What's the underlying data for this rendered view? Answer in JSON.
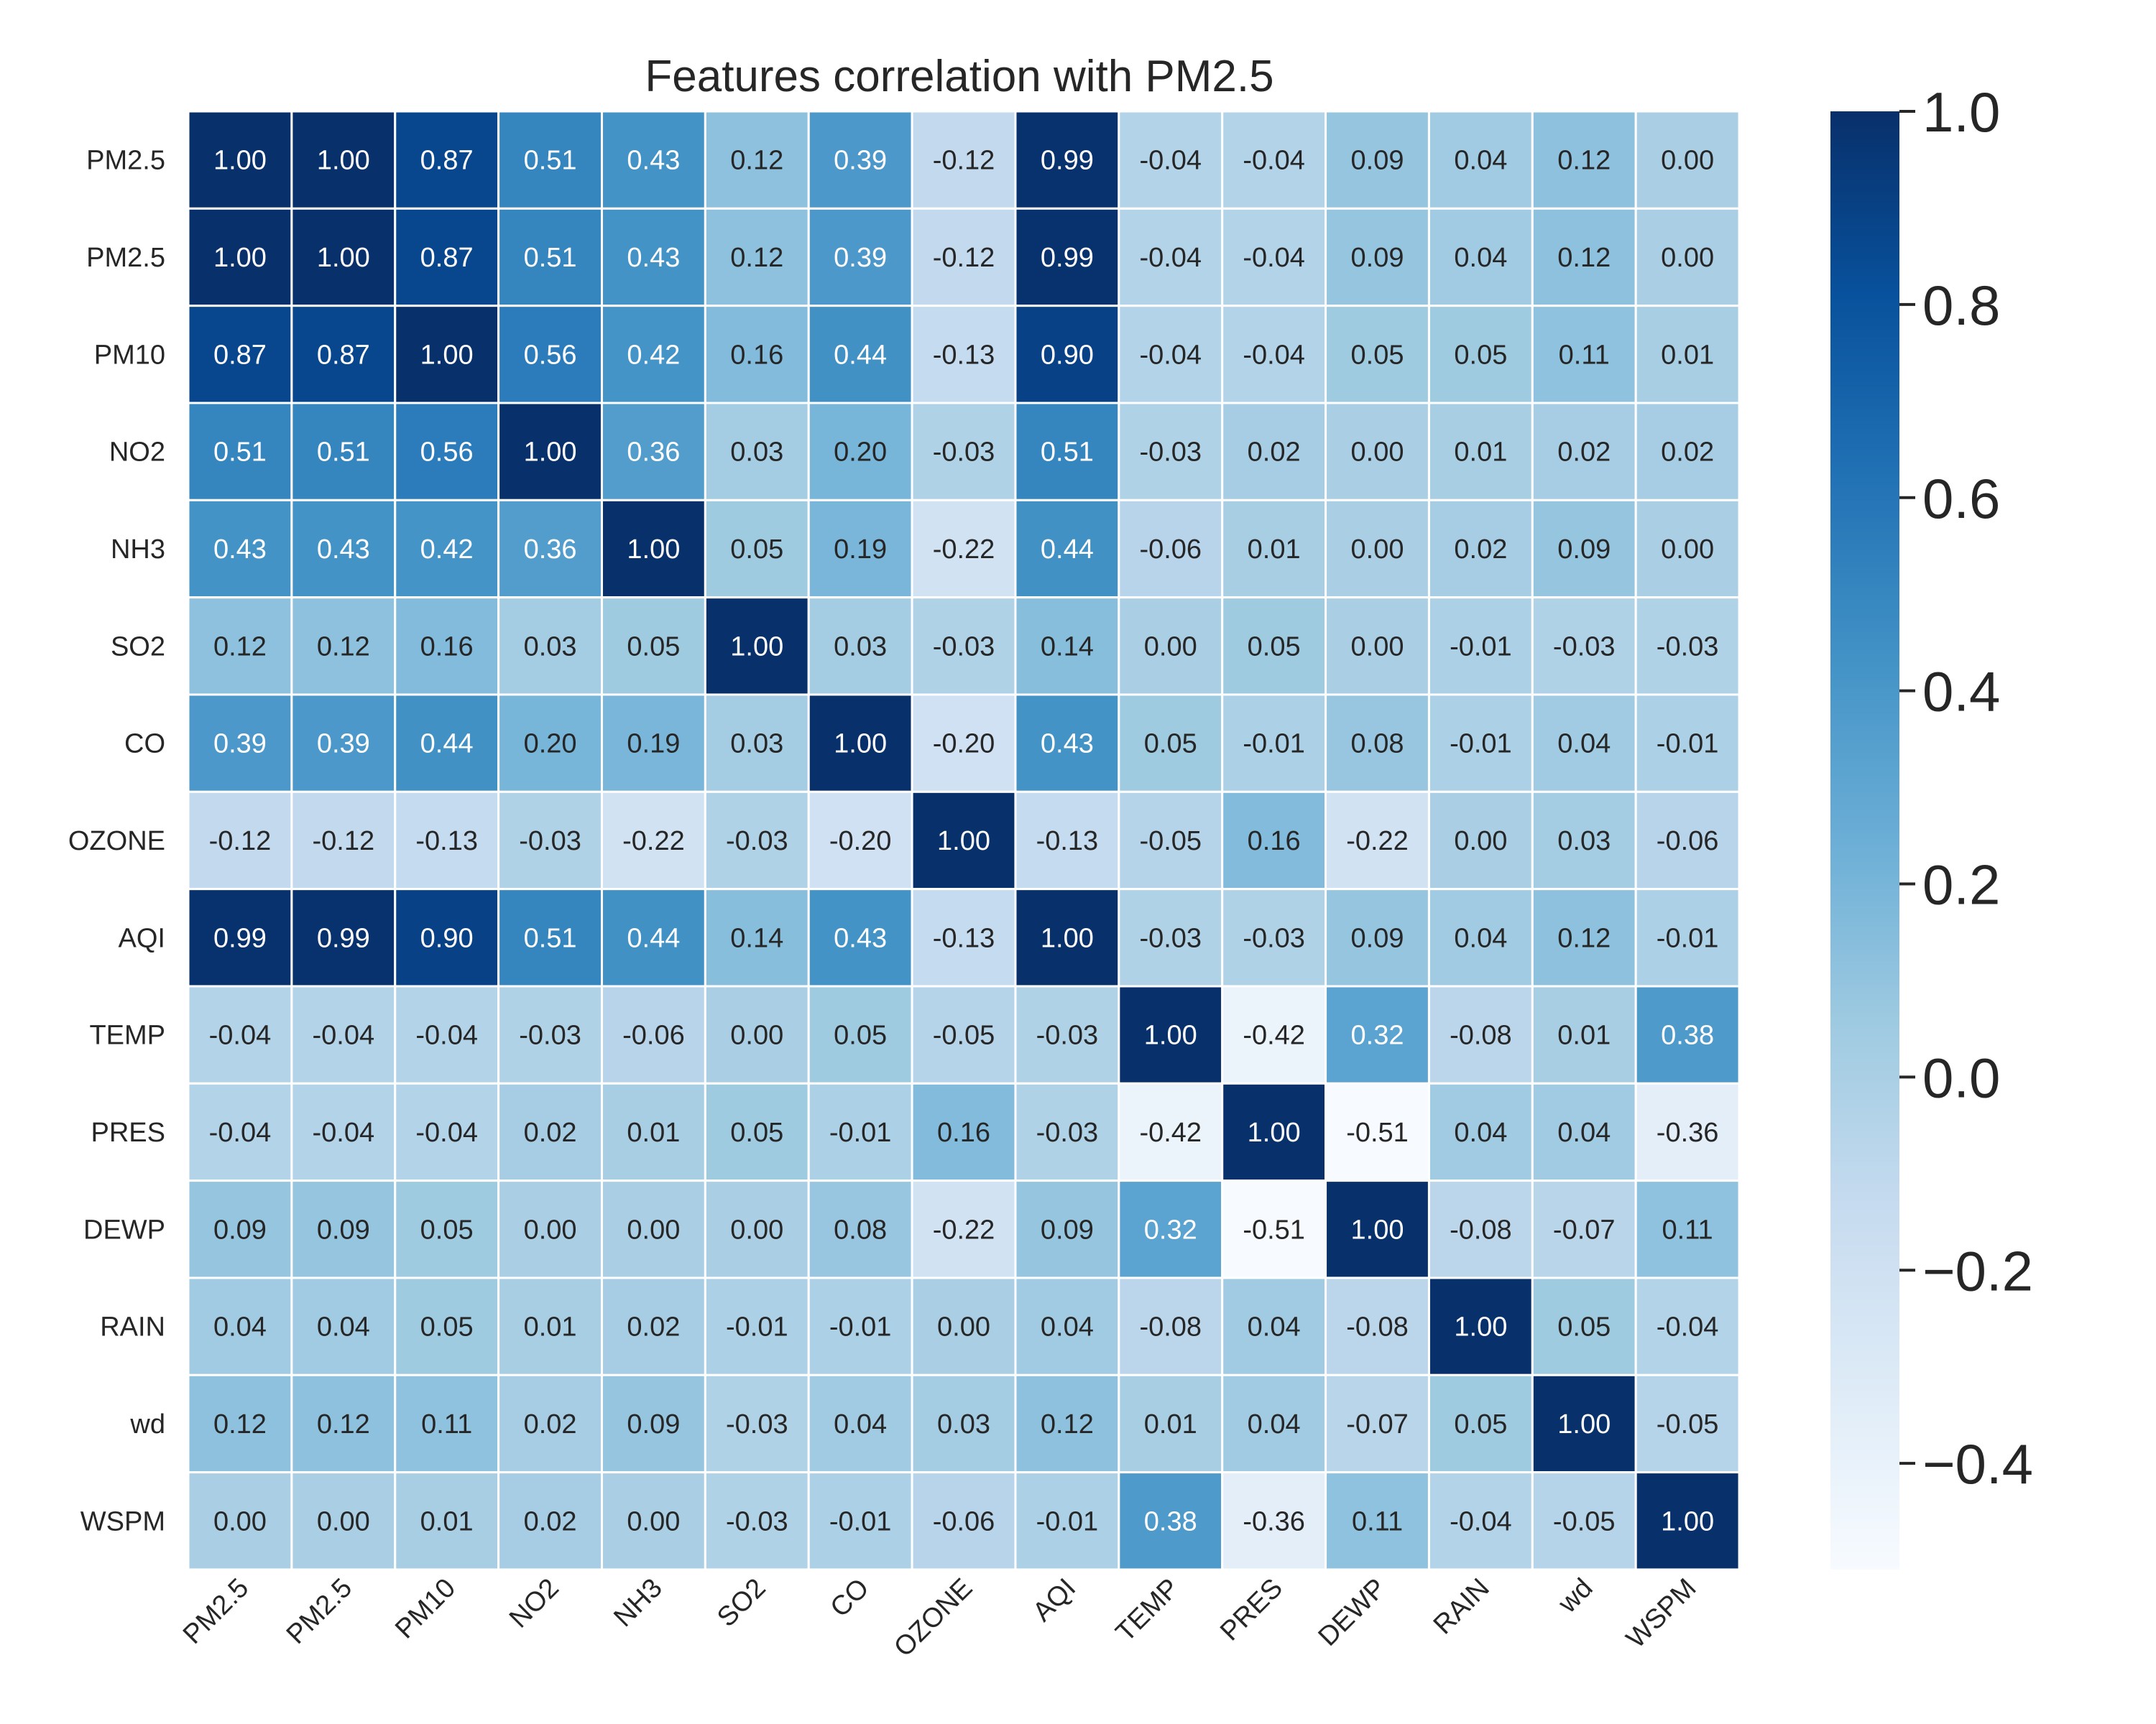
{
  "chart_data": {
    "type": "heatmap",
    "title": "Features correlation with PM2.5",
    "rows": [
      "PM2.5",
      "PM2.5",
      "PM10",
      "NO2",
      "NH3",
      "SO2",
      "CO",
      "OZONE",
      "AQI",
      "TEMP",
      "PRES",
      "DEWP",
      "RAIN",
      "wd",
      "WSPM"
    ],
    "cols": [
      "PM2.5",
      "PM2.5",
      "PM10",
      "NO2",
      "NH3",
      "SO2",
      "CO",
      "OZONE",
      "AQI",
      "TEMP",
      "PRES",
      "DEWP",
      "RAIN",
      "wd",
      "WSPM"
    ],
    "values": [
      [
        1.0,
        1.0,
        0.87,
        0.51,
        0.43,
        0.12,
        0.39,
        -0.12,
        0.99,
        -0.04,
        -0.04,
        0.09,
        0.04,
        0.12,
        -0.0
      ],
      [
        1.0,
        1.0,
        0.87,
        0.51,
        0.43,
        0.12,
        0.39,
        -0.12,
        0.99,
        -0.04,
        -0.04,
        0.09,
        0.04,
        0.12,
        -0.0
      ],
      [
        0.87,
        0.87,
        1.0,
        0.56,
        0.42,
        0.16,
        0.44,
        -0.13,
        0.9,
        -0.04,
        -0.04,
        0.05,
        0.05,
        0.11,
        0.01
      ],
      [
        0.51,
        0.51,
        0.56,
        1.0,
        0.36,
        0.03,
        0.2,
        -0.03,
        0.51,
        -0.03,
        0.02,
        0.0,
        0.01,
        0.02,
        0.02
      ],
      [
        0.43,
        0.43,
        0.42,
        0.36,
        1.0,
        0.05,
        0.19,
        -0.22,
        0.44,
        -0.06,
        0.01,
        -0.0,
        0.02,
        0.09,
        0.0
      ],
      [
        0.12,
        0.12,
        0.16,
        0.03,
        0.05,
        1.0,
        0.03,
        -0.03,
        0.14,
        0.0,
        0.05,
        -0.0,
        -0.01,
        -0.03,
        -0.03
      ],
      [
        0.39,
        0.39,
        0.44,
        0.2,
        0.19,
        0.03,
        1.0,
        -0.2,
        0.43,
        0.05,
        -0.01,
        0.08,
        -0.01,
        0.04,
        -0.01
      ],
      [
        -0.12,
        -0.12,
        -0.13,
        -0.03,
        -0.22,
        -0.03,
        -0.2,
        1.0,
        -0.13,
        -0.05,
        0.16,
        -0.22,
        0.0,
        0.03,
        -0.06
      ],
      [
        0.99,
        0.99,
        0.9,
        0.51,
        0.44,
        0.14,
        0.43,
        -0.13,
        1.0,
        -0.03,
        -0.03,
        0.09,
        0.04,
        0.12,
        -0.01
      ],
      [
        -0.04,
        -0.04,
        -0.04,
        -0.03,
        -0.06,
        0.0,
        0.05,
        -0.05,
        -0.03,
        1.0,
        -0.42,
        0.32,
        -0.08,
        0.01,
        0.38
      ],
      [
        -0.04,
        -0.04,
        -0.04,
        0.02,
        0.01,
        0.05,
        -0.01,
        0.16,
        -0.03,
        -0.42,
        1.0,
        -0.51,
        0.04,
        0.04,
        -0.36
      ],
      [
        0.09,
        0.09,
        0.05,
        0.0,
        -0.0,
        -0.0,
        0.08,
        -0.22,
        0.09,
        0.32,
        -0.51,
        1.0,
        -0.08,
        -0.07,
        0.11
      ],
      [
        0.04,
        0.04,
        0.05,
        0.01,
        0.02,
        -0.01,
        -0.01,
        0.0,
        0.04,
        -0.08,
        0.04,
        -0.08,
        1.0,
        0.05,
        -0.04
      ],
      [
        0.12,
        0.12,
        0.11,
        0.02,
        0.09,
        -0.03,
        0.04,
        0.03,
        0.12,
        0.01,
        0.04,
        -0.07,
        0.05,
        1.0,
        -0.05
      ],
      [
        -0.0,
        -0.0,
        0.01,
        0.02,
        0.0,
        -0.03,
        -0.01,
        -0.06,
        -0.01,
        0.38,
        -0.36,
        0.11,
        -0.04,
        -0.05,
        1.0
      ]
    ],
    "colormap": "Blues",
    "vmin": -0.51,
    "vmax": 1.0,
    "colorbar_ticks": [
      "1.0",
      "0.8",
      "0.6",
      "0.4",
      "0.2",
      "0.0",
      "−0.2",
      "−0.4"
    ],
    "colorbar_tick_values": [
      1.0,
      0.8,
      0.6,
      0.4,
      0.2,
      0.0,
      -0.2,
      -0.4
    ],
    "annotations": "two-decimal values in each cell",
    "grid": "white cell borders"
  }
}
